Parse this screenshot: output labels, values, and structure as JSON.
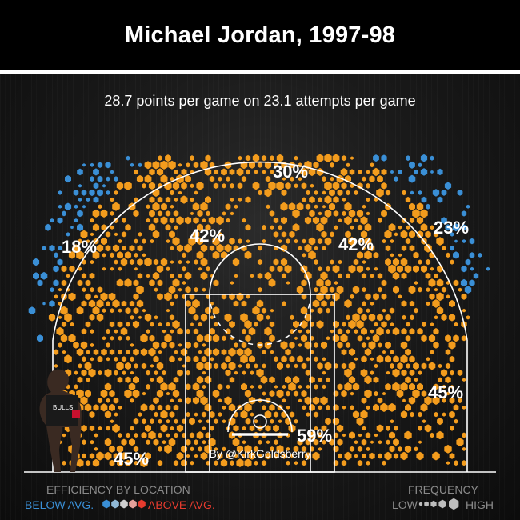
{
  "header": {
    "title": "Michael Jordan, 1997-98"
  },
  "subtitle": "28.7 points per game on 23.1 attempts per game",
  "credit": "By @KirkGoldsberry",
  "colors": {
    "above_avg": "#f39c1d",
    "below_avg": "#3a8fd6",
    "court_line": "#ffffff"
  },
  "chart_data": {
    "type": "heatmap",
    "title": "Michael Jordan, 1997-98",
    "subtitle": "28.7 points per game on 23.1 attempts per game",
    "zones": [
      {
        "label": "30%",
        "zone": "top of key three",
        "efficiency": "below average"
      },
      {
        "label": "18%",
        "zone": "left wing three",
        "efficiency": "below average"
      },
      {
        "label": "23%",
        "zone": "right wing three",
        "efficiency": "below average"
      },
      {
        "label": "42%",
        "zone": "left elbow mid-range",
        "efficiency": "above average"
      },
      {
        "label": "42%",
        "zone": "right elbow mid-range",
        "efficiency": "above average"
      },
      {
        "label": "45%",
        "zone": "left baseline mid-range",
        "efficiency": "above average"
      },
      {
        "label": "45%",
        "zone": "right baseline mid-range",
        "efficiency": "above average"
      },
      {
        "label": "59%",
        "zone": "restricted area",
        "efficiency": "above average"
      }
    ],
    "legend": {
      "efficiency_title": "EFFICIENCY BY LOCATION",
      "below": "BELOW AVG.",
      "above": "ABOVE AVG.",
      "frequency_title": "FREQUENCY",
      "low": "LOW",
      "high": "HIGH"
    }
  }
}
